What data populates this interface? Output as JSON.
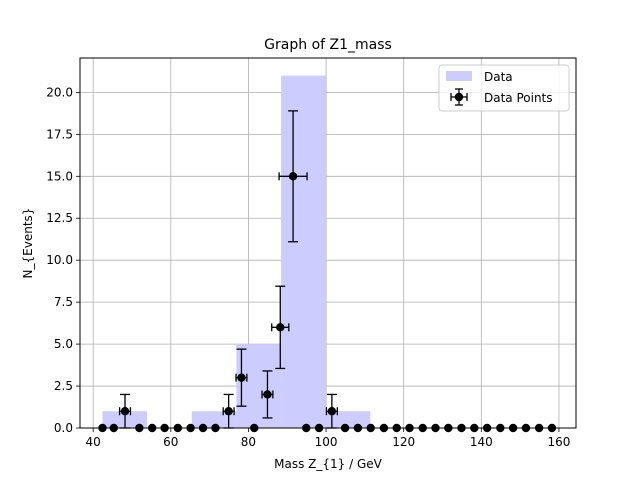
{
  "chart_data": {
    "type": "bar",
    "title": "Graph of Z1_mass",
    "xlabel": "Mass Z_{1} / GeV",
    "ylabel": "N_{Events}",
    "xlim": [
      36.6,
      164.4
    ],
    "ylim": [
      0,
      22.05
    ],
    "xticks": [
      40,
      60,
      80,
      100,
      120,
      140,
      160
    ],
    "yticks": [
      0.0,
      2.5,
      5.0,
      7.5,
      10.0,
      12.5,
      15.0,
      17.5,
      20.0
    ],
    "grid": true,
    "legend_position": "top-right",
    "colors": {
      "hist_fill": "#ccccff",
      "points": "#000000",
      "grid": "#b0b0b0"
    },
    "histogram": {
      "name": "Data",
      "bins": [
        {
          "x0": 42.4,
          "x1": 53.9,
          "value": 1
        },
        {
          "x0": 65.4,
          "x1": 76.9,
          "value": 1
        },
        {
          "x0": 76.9,
          "x1": 88.4,
          "value": 5
        },
        {
          "x0": 88.4,
          "x1": 99.9,
          "value": 21
        },
        {
          "x0": 99.9,
          "x1": 111.4,
          "value": 1
        }
      ]
    },
    "points": {
      "name": "Data Points",
      "values": [
        {
          "x": 42.4,
          "y": 0
        },
        {
          "x": 45.3,
          "y": 0
        },
        {
          "x": 48.2,
          "y": 1,
          "xerr": 1.4,
          "yerr_low": 1,
          "yerr_high": 1
        },
        {
          "x": 51.9,
          "y": 0
        },
        {
          "x": 55.2,
          "y": 0
        },
        {
          "x": 58.4,
          "y": 0
        },
        {
          "x": 61.8,
          "y": 0
        },
        {
          "x": 65.1,
          "y": 0
        },
        {
          "x": 68.3,
          "y": 0
        },
        {
          "x": 71.5,
          "y": 0
        },
        {
          "x": 74.9,
          "y": 1,
          "xerr": 1.4,
          "yerr_low": 1,
          "yerr_high": 1
        },
        {
          "x": 78.2,
          "y": 3,
          "xerr": 1.4,
          "yerr_low": 1.7,
          "yerr_high": 1.7
        },
        {
          "x": 81.5,
          "y": 0
        },
        {
          "x": 84.9,
          "y": 2,
          "xerr": 1.4,
          "yerr_low": 1.4,
          "yerr_high": 1.4
        },
        {
          "x": 88.2,
          "y": 6,
          "xerr": 2.2,
          "yerr_low": 2.45,
          "yerr_high": 2.45
        },
        {
          "x": 91.5,
          "y": 15,
          "xerr": 3.6,
          "yerr_low": 3.9,
          "yerr_high": 3.9
        },
        {
          "x": 94.9,
          "y": 0
        },
        {
          "x": 98.2,
          "y": 0
        },
        {
          "x": 101.5,
          "y": 1,
          "xerr": 1.4,
          "yerr_low": 1,
          "yerr_high": 1
        },
        {
          "x": 104.9,
          "y": 0
        },
        {
          "x": 108.2,
          "y": 0
        },
        {
          "x": 111.5,
          "y": 0
        },
        {
          "x": 114.9,
          "y": 0
        },
        {
          "x": 118.2,
          "y": 0
        },
        {
          "x": 121.5,
          "y": 0
        },
        {
          "x": 124.9,
          "y": 0
        },
        {
          "x": 128.2,
          "y": 0
        },
        {
          "x": 131.5,
          "y": 0
        },
        {
          "x": 134.9,
          "y": 0
        },
        {
          "x": 138.2,
          "y": 0
        },
        {
          "x": 141.5,
          "y": 0
        },
        {
          "x": 144.9,
          "y": 0
        },
        {
          "x": 148.2,
          "y": 0
        },
        {
          "x": 151.5,
          "y": 0
        },
        {
          "x": 154.9,
          "y": 0
        },
        {
          "x": 158.2,
          "y": 0
        }
      ]
    }
  }
}
